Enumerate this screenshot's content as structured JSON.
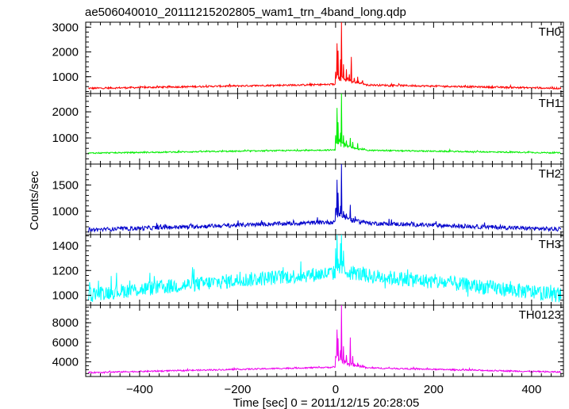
{
  "chart_data": {
    "type": "line",
    "title": "ae506040010_20111215202805_wam1_trn_4band_long.qdp",
    "xlabel": "Time [sec] 0 = 2011/12/15 20:28:05",
    "ylabel": "Counts/sec",
    "xlim": [
      -510,
      465
    ],
    "x_ticks": [
      -400,
      -200,
      0,
      200,
      400
    ],
    "x_tick_labels": [
      "−400",
      "−200",
      "0",
      "200",
      "400"
    ],
    "x_range": [
      -505,
      460
    ],
    "grid": false,
    "panels": [
      {
        "label": "TH0",
        "color": "#ff0000",
        "ylim": [
          320,
          3200
        ],
        "y_ticks": [
          1000,
          2000,
          3000
        ],
        "y_tick_labels": [
          "1000",
          "2000",
          "3000"
        ],
        "baseline": [
          [
            -505,
            530
          ],
          [
            0,
            690
          ],
          [
            460,
            530
          ]
        ],
        "noise": 35,
        "peaks": [
          [
            0,
            1200
          ],
          [
            3,
            2350
          ],
          [
            5,
            2050
          ],
          [
            10,
            1700
          ],
          [
            12,
            3200
          ],
          [
            16,
            1500
          ],
          [
            22,
            1300
          ],
          [
            28,
            1100
          ],
          [
            32,
            1800
          ],
          [
            38,
            950
          ],
          [
            45,
            1000
          ],
          [
            55,
            850
          ]
        ]
      },
      {
        "label": "TH1",
        "color": "#00ee00",
        "ylim": [
          0,
          2700
        ],
        "y_ticks": [
          1000,
          2000
        ],
        "y_tick_labels": [
          "1000",
          "2000"
        ],
        "baseline": [
          [
            -505,
            420
          ],
          [
            0,
            540
          ],
          [
            460,
            430
          ]
        ],
        "noise": 25,
        "peaks": [
          [
            0,
            1100
          ],
          [
            3,
            2150
          ],
          [
            5,
            1600
          ],
          [
            10,
            1200
          ],
          [
            12,
            2700
          ],
          [
            16,
            1100
          ],
          [
            22,
            900
          ],
          [
            30,
            1000
          ],
          [
            35,
            850
          ],
          [
            45,
            800
          ]
        ]
      },
      {
        "label": "TH2",
        "color": "#0000cc",
        "ylim": [
          550,
          1900
        ],
        "y_ticks": [
          1000,
          1500
        ],
        "y_tick_labels": [
          "1000",
          "1500"
        ],
        "baseline": [
          [
            -505,
            640
          ],
          [
            0,
            790
          ],
          [
            460,
            650
          ]
        ],
        "noise": 40,
        "peaks": [
          [
            0,
            1050
          ],
          [
            3,
            1600
          ],
          [
            5,
            1350
          ],
          [
            10,
            1100
          ],
          [
            12,
            1900
          ],
          [
            16,
            1000
          ],
          [
            22,
            950
          ],
          [
            30,
            1120
          ],
          [
            40,
            900
          ]
        ]
      },
      {
        "label": "TH3",
        "color": "#00ffff",
        "ylim": [
          920,
          1490
        ],
        "y_ticks": [
          1000,
          1200,
          1400
        ],
        "y_tick_labels": [
          "1000",
          "1200",
          "1400"
        ],
        "baseline": [
          [
            -505,
            1010
          ],
          [
            -200,
            1120
          ],
          [
            0,
            1180
          ],
          [
            200,
            1110
          ],
          [
            460,
            1000
          ]
        ],
        "noise": 60,
        "peaks": [
          [
            0,
            1380
          ],
          [
            3,
            1490
          ],
          [
            10,
            1420
          ],
          [
            12,
            1490
          ],
          [
            16,
            1360
          ]
        ]
      },
      {
        "label": "TH0123",
        "color": "#ee00ee",
        "ylim": [
          2500,
          9800
        ],
        "y_ticks": [
          4000,
          6000,
          8000
        ],
        "y_tick_labels": [
          "4000",
          "6000",
          "8000"
        ],
        "baseline": [
          [
            -505,
            2900
          ],
          [
            0,
            3450
          ],
          [
            460,
            2950
          ]
        ],
        "noise": 70,
        "peaks": [
          [
            0,
            4600
          ],
          [
            3,
            7300
          ],
          [
            5,
            6400
          ],
          [
            10,
            5200
          ],
          [
            12,
            9800
          ],
          [
            16,
            5600
          ],
          [
            22,
            4700
          ],
          [
            30,
            6500
          ],
          [
            35,
            4600
          ],
          [
            45,
            3900
          ],
          [
            55,
            3700
          ]
        ]
      }
    ]
  }
}
